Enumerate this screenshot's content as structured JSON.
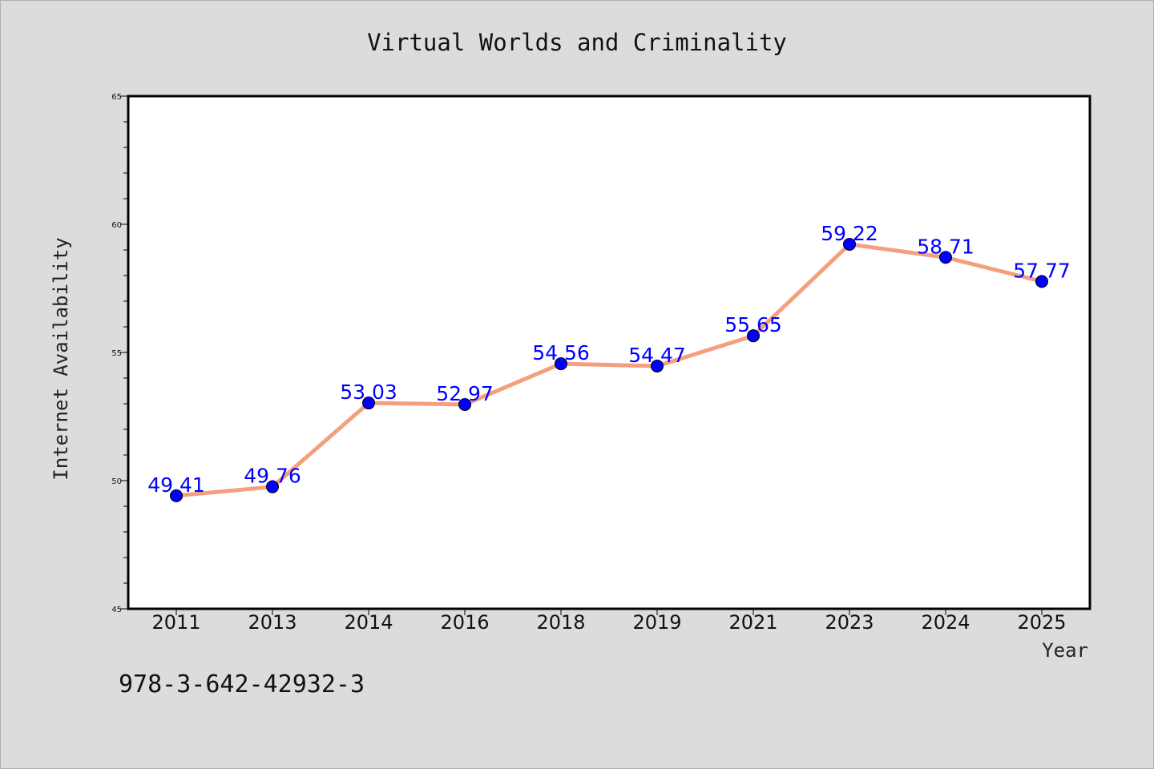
{
  "chart_data": {
    "type": "line",
    "title": "Virtual Worlds and Criminality",
    "xlabel": "Year",
    "ylabel": "Internet Availability",
    "categories": [
      "2011",
      "2013",
      "2014",
      "2016",
      "2018",
      "2019",
      "2021",
      "2023",
      "2024",
      "2025"
    ],
    "series": [
      {
        "values": [
          49.41,
          49.76,
          53.03,
          52.97,
          54.56,
          54.47,
          55.65,
          59.22,
          58.71,
          57.77
        ],
        "labels": [
          "49.41",
          "49.76",
          "53.03",
          "52.97",
          "54.56",
          "54.47",
          "55.65",
          "59.22",
          "58.71",
          "57.77"
        ],
        "line_color": "#f4a07e",
        "marker_color": "#0000ff"
      }
    ],
    "ylim": [
      45,
      65
    ],
    "yticks": [
      "45",
      "50",
      "55",
      "60",
      "65"
    ],
    "grid": false,
    "legend": "none"
  },
  "footnote": "978-3-642-42932-3"
}
